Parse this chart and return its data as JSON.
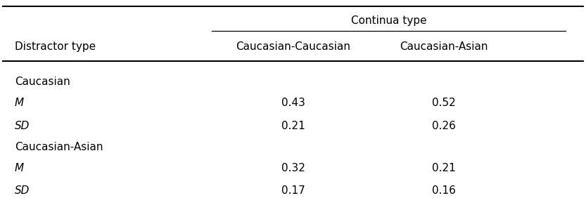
{
  "continua_type_label": "Continua type",
  "col1_header": "Caucasian-Caucasian",
  "col2_header": "Caucasian-Asian",
  "distractor_col_header": "Distractor type",
  "group1_label": "Caucasian",
  "group1_M_col1": "0.43",
  "group1_M_col2": "0.52",
  "group1_SD_col1": "0.21",
  "group1_SD_col2": "0.26",
  "group2_label": "Caucasian-Asian",
  "group2_M_col1": "0.32",
  "group2_M_col2": "0.21",
  "group2_SD_col1": "0.17",
  "group2_SD_col2": "0.16",
  "M_label": "M",
  "SD_label": "SD",
  "background_color": "#ffffff",
  "text_color": "#000000",
  "font_size": 11
}
